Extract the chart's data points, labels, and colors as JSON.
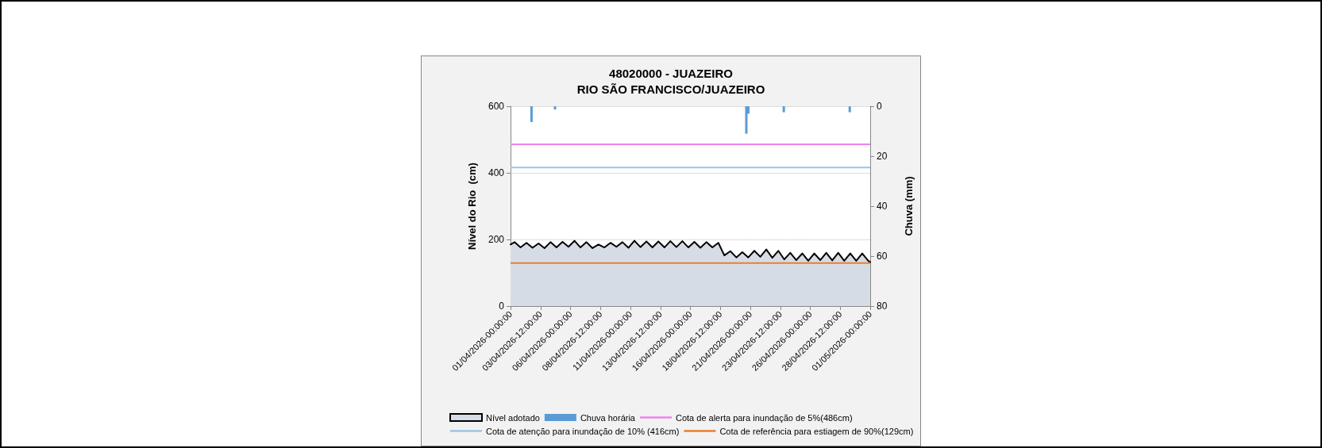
{
  "chart_data": {
    "type": "area",
    "title": "48020000 - JUAZEIRO",
    "subtitle": "RIO SÃO FRANCISCO/JUAZEIRO",
    "ylabel": "Nível do Rio  (cm)",
    "y2label": "Chuva (mm)",
    "x": [
      "2026-04-01T00:00",
      "2026-04-01T08:00",
      "2026-04-01T20:00",
      "2026-04-02T08:00",
      "2026-04-02T20:00",
      "2026-04-03T08:00",
      "2026-04-03T20:00",
      "2026-04-04T08:00",
      "2026-04-04T20:00",
      "2026-04-05T08:00",
      "2026-04-05T20:00",
      "2026-04-06T08:00",
      "2026-04-06T20:00",
      "2026-04-07T08:00",
      "2026-04-07T20:00",
      "2026-04-08T08:00",
      "2026-04-08T20:00",
      "2026-04-09T08:00",
      "2026-04-09T20:00",
      "2026-04-10T08:00",
      "2026-04-10T20:00",
      "2026-04-11T08:00",
      "2026-04-11T20:00",
      "2026-04-12T08:00",
      "2026-04-12T20:00",
      "2026-04-13T08:00",
      "2026-04-13T20:00",
      "2026-04-14T08:00",
      "2026-04-14T20:00",
      "2026-04-15T08:00",
      "2026-04-15T20:00",
      "2026-04-16T08:00",
      "2026-04-16T20:00",
      "2026-04-17T08:00",
      "2026-04-17T20:00",
      "2026-04-18T08:00",
      "2026-04-18T20:00",
      "2026-04-19T08:00",
      "2026-04-19T20:00",
      "2026-04-20T08:00",
      "2026-04-20T20:00",
      "2026-04-21T08:00",
      "2026-04-21T20:00",
      "2026-04-22T08:00",
      "2026-04-22T20:00",
      "2026-04-23T08:00",
      "2026-04-23T20:00",
      "2026-04-24T08:00",
      "2026-04-24T20:00",
      "2026-04-25T08:00",
      "2026-04-25T20:00",
      "2026-04-26T08:00",
      "2026-04-26T20:00",
      "2026-04-27T08:00",
      "2026-04-27T20:00",
      "2026-04-28T08:00",
      "2026-04-28T20:00",
      "2026-04-29T08:00",
      "2026-04-29T20:00",
      "2026-04-30T08:00",
      "2026-04-30T20:00",
      "2026-05-01T00:00"
    ],
    "series": [
      {
        "name": "Nível adotado",
        "color": "#d6dce5",
        "values": [
          185,
          192,
          176,
          190,
          175,
          188,
          174,
          192,
          176,
          193,
          178,
          196,
          176,
          192,
          174,
          185,
          176,
          190,
          178,
          192,
          175,
          196,
          177,
          194,
          176,
          194,
          176,
          195,
          177,
          195,
          176,
          193,
          175,
          192,
          176,
          190,
          152,
          165,
          146,
          162,
          146,
          166,
          148,
          170,
          145,
          166,
          140,
          160,
          138,
          158,
          136,
          158,
          138,
          160,
          137,
          160,
          136,
          158,
          136,
          158,
          136,
          132
        ]
      },
      {
        "name": "Chuva horária",
        "type": "bar",
        "axis": "y2",
        "color": "#5b9bd5",
        "x": [
          "2026-04-02T18:00",
          "2026-04-04T17:00",
          "2026-04-20T16:00",
          "2026-04-20T20:00",
          "2026-04-23T19:00",
          "2026-04-29T07:00"
        ],
        "values": [
          6.3,
          1.3,
          11,
          3,
          2.4,
          2.4
        ]
      }
    ],
    "ref_lines": [
      {
        "axis": "y",
        "value": 486,
        "label": "Cota de alerta para inundação de 5%(486cm)",
        "color": "#ee82ee"
      },
      {
        "axis": "y",
        "value": 416,
        "label": "Cota de atenção para inundação de 10% (416cm)",
        "color": "#9dc3e6"
      },
      {
        "axis": "y",
        "value": 129,
        "label": "Cota de referência para estiagem de 90%(129cm)",
        "color": "#ed7d31"
      }
    ],
    "xlim": [
      "2026-04-01T00:00",
      "2026-05-01T00:00"
    ],
    "xticks": [
      {
        "value": "2026-04-01T00:00",
        "label": "01/04/2026-00:00:00"
      },
      {
        "value": "2026-04-03T12:00",
        "label": "03/04/2026-12:00:00"
      },
      {
        "value": "2026-04-06T00:00",
        "label": "06/04/2026-00:00:00"
      },
      {
        "value": "2026-04-08T12:00",
        "label": "08/04/2026-12:00:00"
      },
      {
        "value": "2026-04-11T00:00",
        "label": "11/04/2026-00:00:00"
      },
      {
        "value": "2026-04-13T12:00",
        "label": "13/04/2026-12:00:00"
      },
      {
        "value": "2026-04-16T00:00",
        "label": "16/04/2026-00:00:00"
      },
      {
        "value": "2026-04-18T12:00",
        "label": "18/04/2026-12:00:00"
      },
      {
        "value": "2026-04-21T00:00",
        "label": "21/04/2026-00:00:00"
      },
      {
        "value": "2026-04-23T12:00",
        "label": "23/04/2026-12:00:00"
      },
      {
        "value": "2026-04-26T00:00",
        "label": "26/04/2026-00:00:00"
      },
      {
        "value": "2026-04-28T12:00",
        "label": "28/04/2026-12:00:00"
      },
      {
        "value": "2026-05-01T00:00",
        "label": "01/05/2026-00:00:00"
      }
    ],
    "ylim": [
      0,
      600
    ],
    "yticks": [
      0,
      200,
      400,
      600
    ],
    "y2lim": [
      80,
      0
    ],
    "y2ticks": [
      0,
      20,
      40,
      60,
      80
    ],
    "grid": "y",
    "legend": "bottom",
    "marker": "none"
  }
}
